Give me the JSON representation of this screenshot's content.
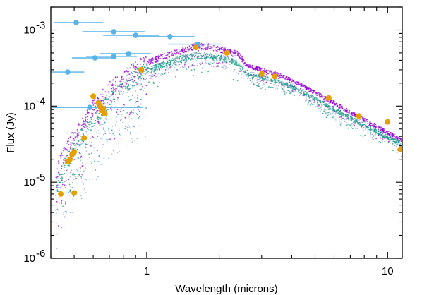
{
  "chart_data": {
    "type": "scatter",
    "xlabel": "Wavelength (microns)",
    "ylabel": "Flux (Jy)",
    "xscale": "log",
    "yscale": "log",
    "xlim": [
      0.4,
      11.5
    ],
    "ylim": [
      1e-06,
      0.002
    ],
    "x_ticks": [
      {
        "value": 1,
        "label": "1"
      },
      {
        "value": 10,
        "label": "10"
      }
    ],
    "y_ticks": [
      {
        "value": 1e-06,
        "label": "10",
        "exp": "-6"
      },
      {
        "value": 1e-05,
        "label": "10",
        "exp": "-5"
      },
      {
        "value": 0.0001,
        "label": "10",
        "exp": "-4"
      },
      {
        "value": 0.001,
        "label": "10",
        "exp": "-3"
      }
    ],
    "grid": false,
    "legend": "none",
    "colors": {
      "model_purple": "#9400d3",
      "model_green": "#1a9e8a",
      "model_blue": "#4a6fb5",
      "photometry_orange": "#e69f00",
      "upper_limits_blue": "#56b4e9"
    },
    "series": [
      {
        "kind": "model-spectrum",
        "color": "#9400d3",
        "x": [
          0.42,
          0.45,
          0.5,
          0.55,
          0.6,
          0.7,
          0.8,
          0.9,
          1.0,
          1.2,
          1.4,
          1.6,
          1.8,
          2.0,
          2.2,
          2.4,
          2.6,
          3.0,
          3.5,
          4.0,
          5.0,
          6.0,
          7.0,
          8.0,
          9.0,
          10.0,
          11.5
        ],
        "y": [
          1.2e-05,
          2.2e-05,
          4e-05,
          6.5e-05,
          9.5e-05,
          0.00016,
          0.00023,
          0.00031,
          0.00037,
          0.00046,
          0.00054,
          0.00061,
          0.0006,
          0.00056,
          0.00052,
          0.00048,
          0.00034,
          0.0003,
          0.00026,
          0.00022,
          0.00015,
          0.00011,
          8.3e-05,
          6.6e-05,
          5.4e-05,
          4.5e-05,
          3.5e-05
        ]
      },
      {
        "kind": "model-spectrum",
        "color": "#1a9e8a",
        "x": [
          0.42,
          0.45,
          0.5,
          0.55,
          0.6,
          0.7,
          0.8,
          0.9,
          1.0,
          1.2,
          1.4,
          1.6,
          1.8,
          2.0,
          2.2,
          2.4,
          2.6,
          3.0,
          3.5,
          4.0,
          5.0,
          6.0,
          7.0,
          8.0,
          9.0,
          10.0,
          11.5
        ],
        "y": [
          8e-06,
          1.5e-05,
          2.8e-05,
          4.6e-05,
          6.8e-05,
          0.00012,
          0.00018,
          0.00024,
          0.00029,
          0.00036,
          0.00042,
          0.00046,
          0.00045,
          0.00043,
          0.0004,
          0.00036,
          0.00026,
          0.00024,
          0.00021,
          0.00018,
          0.000125,
          9e-05,
          7e-05,
          5.6e-05,
          4.6e-05,
          3.9e-05,
          3.2e-05
        ]
      },
      {
        "kind": "photometry",
        "color": "#e69f00",
        "x": [
          0.44,
          0.47,
          0.48,
          0.49,
          0.5,
          0.5,
          0.55,
          0.6,
          0.63,
          0.64,
          0.65,
          0.66,
          0.67,
          0.95,
          1.6,
          2.15,
          3.0,
          3.4,
          5.7,
          7.6,
          10.0,
          11.3
        ],
        "y": [
          7e-06,
          1.85e-05,
          2e-05,
          2.3e-05,
          2.5e-05,
          7.2e-06,
          3.8e-05,
          0.000135,
          0.00011,
          0.0001,
          8.8e-05,
          9.3e-05,
          8e-05,
          0.0003,
          0.00059,
          0.0005,
          0.000265,
          0.000245,
          0.000128,
          7.4e-05,
          6.2e-05,
          2.7e-05
        ]
      },
      {
        "kind": "upper-limit",
        "color": "#56b4e9",
        "x": [
          0.51,
          0.73,
          0.9,
          1.25,
          0.61,
          0.73,
          0.84,
          0.47,
          1.63,
          0.58
        ],
        "y": [
          0.00125,
          0.00095,
          0.00085,
          0.00082,
          0.00043,
          0.00045,
          0.00049,
          0.00028,
          0.00065,
          9.6e-05
        ],
        "xerr_low": [
          0.1,
          0.19,
          0.24,
          0.36,
          0.12,
          0.17,
          0.2,
          0.07,
          0.4,
          0.18
        ],
        "xerr_high": [
          0.15,
          0.25,
          0.23,
          0.33,
          0.14,
          0.18,
          0.2,
          0.08,
          0.4,
          0.38
        ]
      }
    ]
  }
}
